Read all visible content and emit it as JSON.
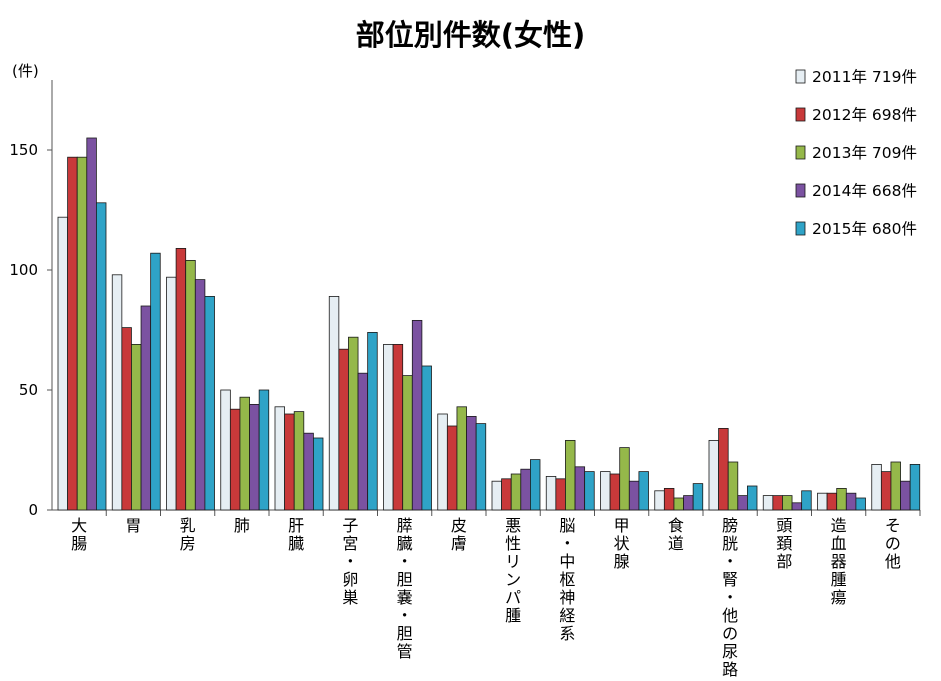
{
  "chart_data": {
    "type": "bar",
    "title": "部位別件数(女性)",
    "ylabel": "(件)",
    "xlabel": "",
    "ylim": [
      0,
      180
    ],
    "yticks": [
      0,
      50,
      100,
      150
    ],
    "grid": false,
    "legend_position": "top-right",
    "categories": [
      "大腸",
      "胃",
      "乳房",
      "肺",
      "肝臓",
      "子宮・卵巣",
      "膵臓・胆嚢・胆管",
      "皮膚",
      "悪性リンパ腫",
      "脳・中枢神経系",
      "甲状腺",
      "食道",
      "膀胱・腎・他の尿路",
      "頭頚部",
      "造血器腫瘍",
      "その他"
    ],
    "series": [
      {
        "name": "2011年 719件",
        "color": "#e6eef3",
        "values": [
          122,
          98,
          97,
          50,
          43,
          89,
          69,
          40,
          12,
          14,
          16,
          8,
          29,
          6,
          7,
          19
        ]
      },
      {
        "name": "2012年 698件",
        "color": "#c8393a",
        "values": [
          147,
          76,
          109,
          42,
          40,
          67,
          69,
          35,
          13,
          13,
          15,
          9,
          34,
          6,
          7,
          16
        ]
      },
      {
        "name": "2013年 709件",
        "color": "#95b84a",
        "values": [
          147,
          69,
          104,
          47,
          41,
          72,
          56,
          43,
          15,
          29,
          26,
          5,
          20,
          6,
          9,
          20
        ]
      },
      {
        "name": "2014年 668件",
        "color": "#7b52a1",
        "values": [
          155,
          85,
          96,
          44,
          32,
          57,
          79,
          39,
          17,
          18,
          12,
          6,
          6,
          3,
          7,
          12
        ]
      },
      {
        "name": "2015年 680件",
        "color": "#2fa3c7",
        "values": [
          128,
          107,
          89,
          50,
          30,
          74,
          60,
          36,
          21,
          16,
          16,
          11,
          10,
          8,
          5,
          19
        ]
      }
    ]
  }
}
